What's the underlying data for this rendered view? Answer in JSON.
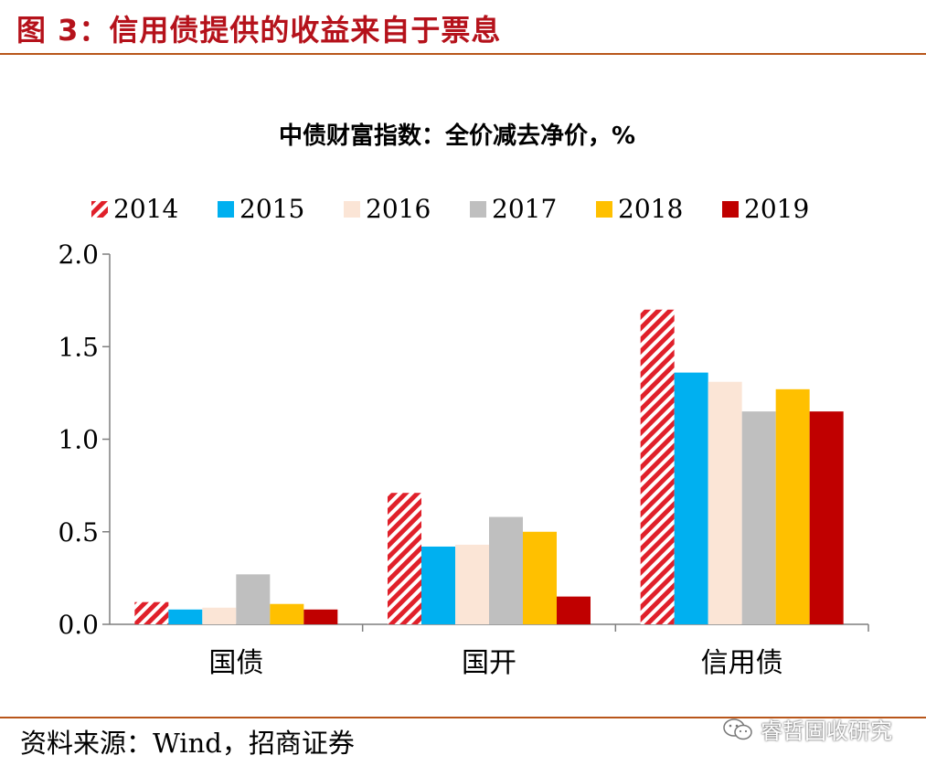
{
  "figure": {
    "title": "图 3：信用债提供的收益来自于票息",
    "source": "资料来源：Wind，招商证券",
    "watermark": "睿哲固收研究",
    "watermark_icon": "wechat-icon"
  },
  "chart_data": {
    "type": "bar",
    "title": "中债财富指数：全价减去净价，%",
    "categories": [
      "国债",
      "国开",
      "信用债"
    ],
    "series": [
      {
        "name": "2014",
        "values": [
          0.12,
          0.71,
          1.7
        ],
        "color": "#e0202a",
        "pattern": "hatch"
      },
      {
        "name": "2015",
        "values": [
          0.08,
          0.42,
          1.36
        ],
        "color": "#00b0f0"
      },
      {
        "name": "2016",
        "values": [
          0.09,
          0.43,
          1.31
        ],
        "color": "#fbe5d6"
      },
      {
        "name": "2017",
        "values": [
          0.27,
          0.58,
          1.15
        ],
        "color": "#bfbfbf"
      },
      {
        "name": "2018",
        "values": [
          0.11,
          0.5,
          1.27
        ],
        "color": "#ffc000"
      },
      {
        "name": "2019",
        "values": [
          0.08,
          0.15,
          1.15
        ],
        "color": "#c00000"
      }
    ],
    "yticks": [
      "0.0",
      "0.5",
      "1.0",
      "1.5",
      "2.0"
    ],
    "ylim": [
      0,
      2.0
    ],
    "xlabel": "",
    "ylabel": "",
    "legend_position": "top",
    "grid": false
  }
}
